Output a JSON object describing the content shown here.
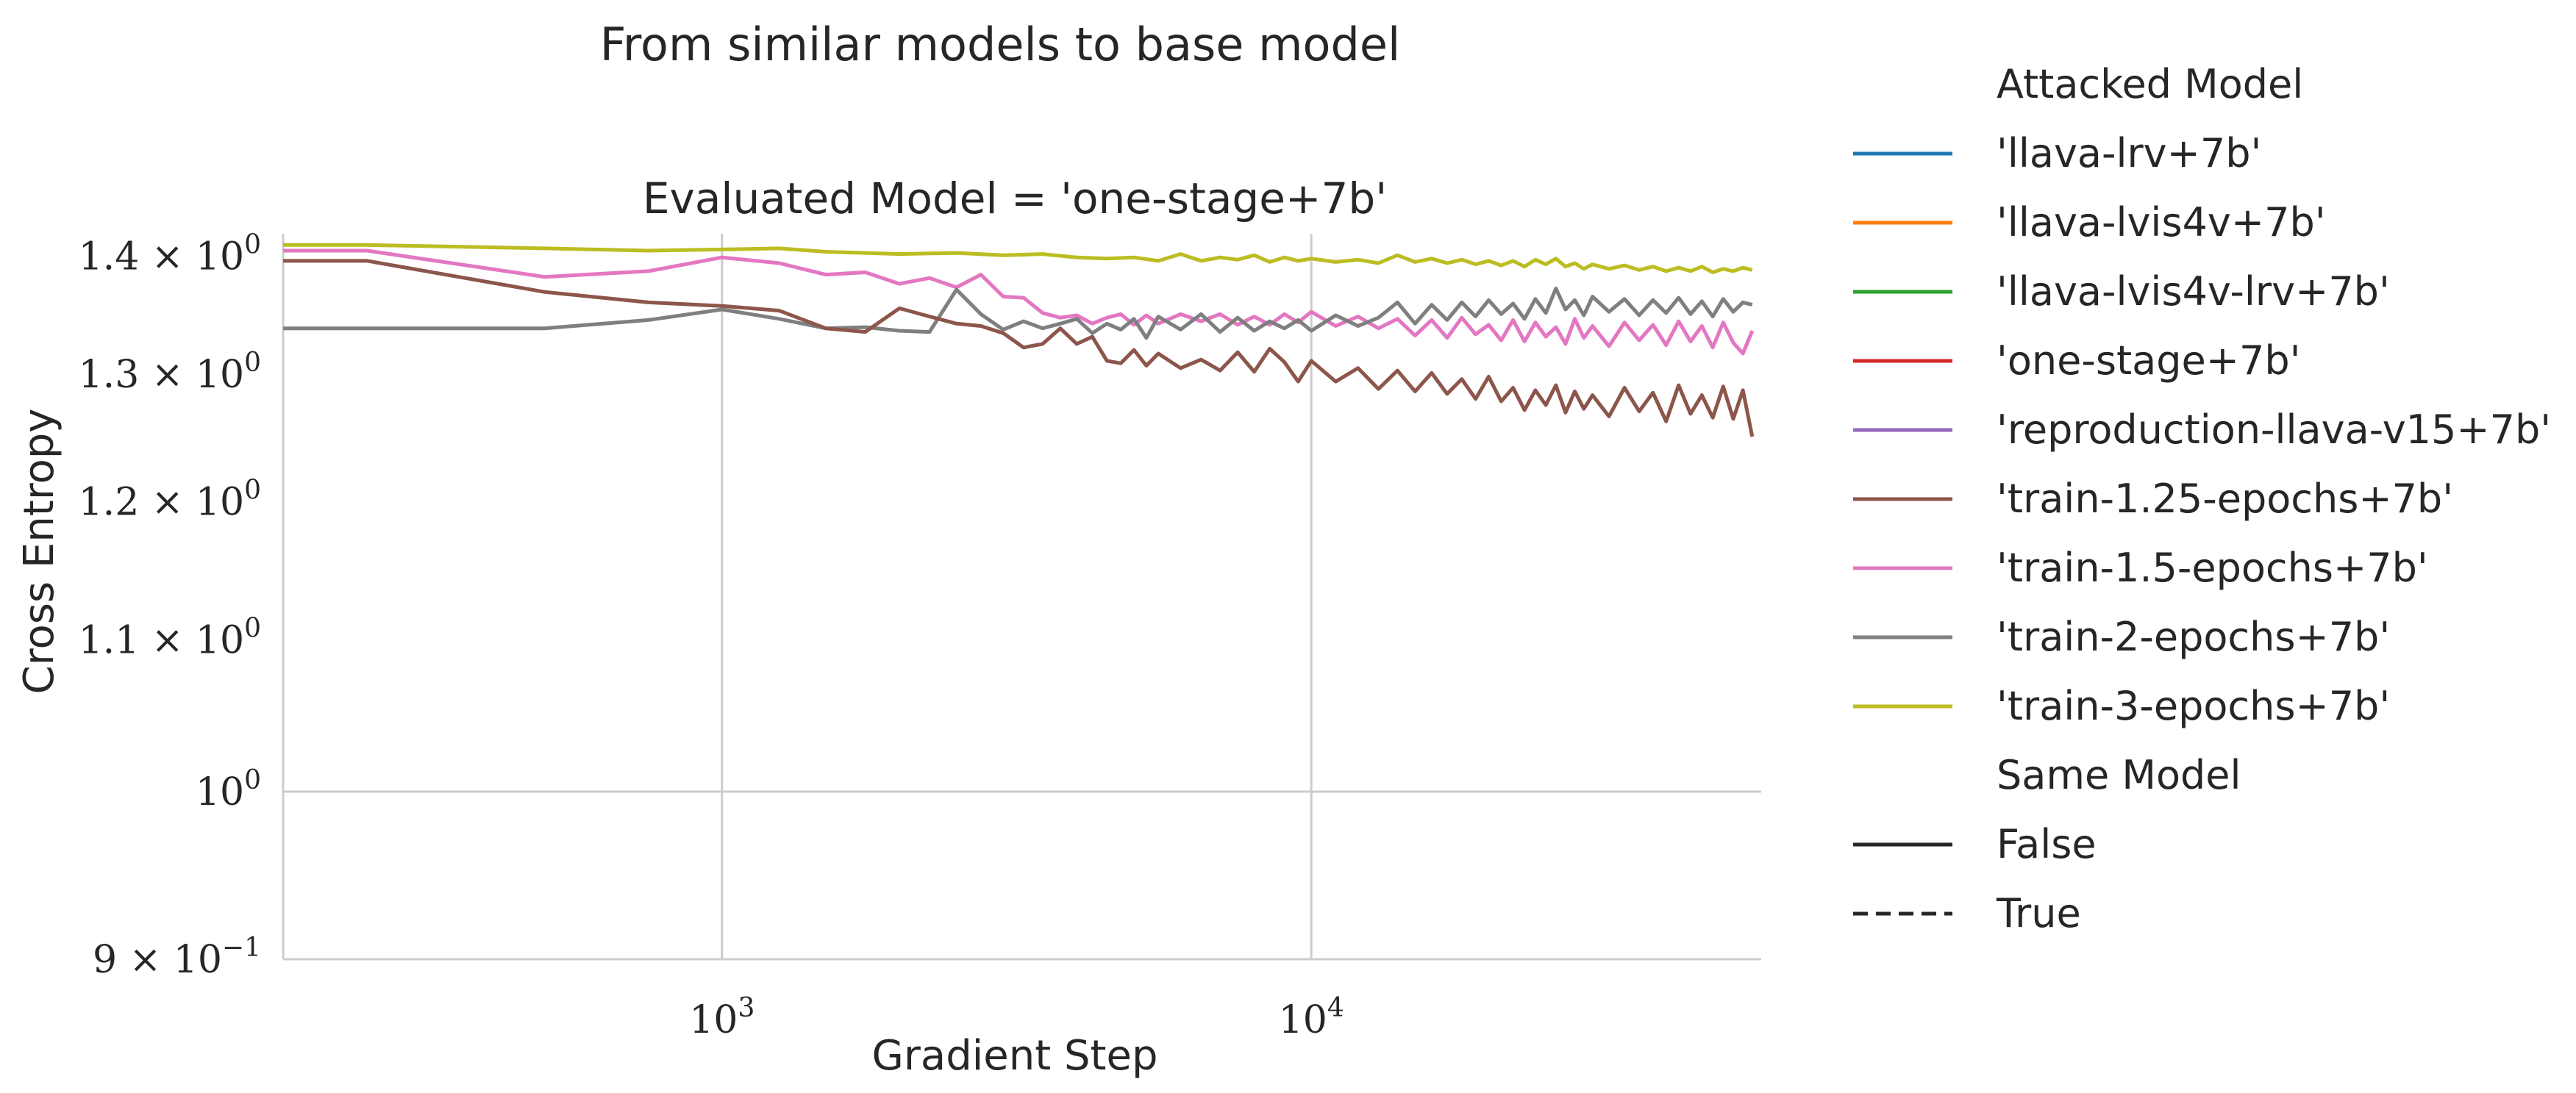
{
  "chart_data": {
    "type": "line",
    "title": "From similar models to base model",
    "subtitle": "Evaluated Model = 'one-stage+7b'",
    "xlabel": "Gradient Step",
    "ylabel": "Cross Entropy",
    "xscale": "log",
    "yscale": "log",
    "xlim": [
      180,
      58000
    ],
    "ylim": [
      0.9,
      1.42
    ],
    "grid": true,
    "legend_placement": "right, outside plot",
    "x_ticks": [
      {
        "value": 1000,
        "base": "10",
        "exp": "3"
      },
      {
        "value": 10000,
        "base": "10",
        "exp": "4"
      }
    ],
    "y_ticks": [
      {
        "value": 1.4,
        "mant": "1.4 × 10",
        "exp": "0"
      },
      {
        "value": 1.3,
        "mant": "1.3 × 10",
        "exp": "0"
      },
      {
        "value": 1.2,
        "mant": "1.2 × 10",
        "exp": "0"
      },
      {
        "value": 1.1,
        "mant": "1.1 × 10",
        "exp": "0"
      },
      {
        "value": 1.0,
        "mant": "10",
        "exp": "0"
      },
      {
        "value": 0.9,
        "mant": "9 × 10",
        "exp": "−1"
      }
    ],
    "legend": {
      "hue_title": "Attacked Model",
      "hue_entries": [
        {
          "label": "'llava-lrv+7b'",
          "color": "#1f77b4"
        },
        {
          "label": "'llava-lvis4v+7b'",
          "color": "#ff7f0e"
        },
        {
          "label": "'llava-lvis4v-lrv+7b'",
          "color": "#2ca02c"
        },
        {
          "label": "'one-stage+7b'",
          "color": "#d62728"
        },
        {
          "label": "'reproduction-llava-v15+7b'",
          "color": "#9467bd"
        },
        {
          "label": "'train-1.25-epochs+7b'",
          "color": "#8c564b"
        },
        {
          "label": "'train-1.5-epochs+7b'",
          "color": "#e377c2"
        },
        {
          "label": "'train-2-epochs+7b'",
          "color": "#7f7f7f"
        },
        {
          "label": "'train-3-epochs+7b'",
          "color": "#bcbd22"
        }
      ],
      "style_title": "Same Model",
      "style_entries": [
        {
          "label": "False",
          "dash": "solid"
        },
        {
          "label": "True",
          "dash": "dashed"
        }
      ]
    },
    "series": [
      {
        "name": "'train-3-epochs+7b'",
        "color": "#bcbd22",
        "points": [
          [
            180,
            1.41
          ],
          [
            250,
            1.41
          ],
          [
            500,
            1.407
          ],
          [
            750,
            1.405
          ],
          [
            1000,
            1.406
          ],
          [
            1250,
            1.407
          ],
          [
            1500,
            1.404
          ],
          [
            1750,
            1.403
          ],
          [
            2000,
            1.402
          ],
          [
            2500,
            1.403
          ],
          [
            3000,
            1.401
          ],
          [
            3500,
            1.402
          ],
          [
            4000,
            1.399
          ],
          [
            4500,
            1.398
          ],
          [
            5000,
            1.399
          ],
          [
            5500,
            1.396
          ],
          [
            6000,
            1.402
          ],
          [
            6500,
            1.396
          ],
          [
            7000,
            1.399
          ],
          [
            7500,
            1.397
          ],
          [
            8000,
            1.401
          ],
          [
            8500,
            1.395
          ],
          [
            9000,
            1.399
          ],
          [
            9500,
            1.396
          ],
          [
            10000,
            1.398
          ],
          [
            11000,
            1.395
          ],
          [
            12000,
            1.397
          ],
          [
            13000,
            1.394
          ],
          [
            14000,
            1.401
          ],
          [
            15000,
            1.395
          ],
          [
            16000,
            1.398
          ],
          [
            17000,
            1.394
          ],
          [
            18000,
            1.397
          ],
          [
            19000,
            1.393
          ],
          [
            20000,
            1.396
          ],
          [
            21000,
            1.392
          ],
          [
            22000,
            1.396
          ],
          [
            23000,
            1.391
          ],
          [
            24000,
            1.397
          ],
          [
            25000,
            1.393
          ],
          [
            26000,
            1.398
          ],
          [
            27000,
            1.391
          ],
          [
            28000,
            1.394
          ],
          [
            29000,
            1.389
          ],
          [
            30000,
            1.393
          ],
          [
            32000,
            1.389
          ],
          [
            34000,
            1.392
          ],
          [
            36000,
            1.388
          ],
          [
            38000,
            1.391
          ],
          [
            40000,
            1.387
          ],
          [
            42000,
            1.39
          ],
          [
            44000,
            1.387
          ],
          [
            46000,
            1.391
          ],
          [
            48000,
            1.386
          ],
          [
            50000,
            1.389
          ],
          [
            52000,
            1.387
          ],
          [
            54000,
            1.39
          ],
          [
            56000,
            1.388
          ]
        ]
      },
      {
        "name": "'train-1.5-epochs+7b'",
        "color": "#e377c2",
        "points": [
          [
            180,
            1.405
          ],
          [
            250,
            1.405
          ],
          [
            500,
            1.382
          ],
          [
            750,
            1.387
          ],
          [
            1000,
            1.399
          ],
          [
            1250,
            1.394
          ],
          [
            1500,
            1.384
          ],
          [
            1750,
            1.386
          ],
          [
            2000,
            1.376
          ],
          [
            2250,
            1.381
          ],
          [
            2500,
            1.373
          ],
          [
            2750,
            1.384
          ],
          [
            3000,
            1.365
          ],
          [
            3250,
            1.364
          ],
          [
            3500,
            1.351
          ],
          [
            3750,
            1.347
          ],
          [
            4000,
            1.349
          ],
          [
            4250,
            1.342
          ],
          [
            4500,
            1.347
          ],
          [
            4750,
            1.35
          ],
          [
            5000,
            1.341
          ],
          [
            5250,
            1.349
          ],
          [
            5500,
            1.342
          ],
          [
            6000,
            1.35
          ],
          [
            6500,
            1.344
          ],
          [
            7000,
            1.35
          ],
          [
            7500,
            1.341
          ],
          [
            8000,
            1.348
          ],
          [
            8500,
            1.341
          ],
          [
            9000,
            1.35
          ],
          [
            9500,
            1.343
          ],
          [
            10000,
            1.352
          ],
          [
            11000,
            1.34
          ],
          [
            12000,
            1.348
          ],
          [
            13000,
            1.338
          ],
          [
            14000,
            1.346
          ],
          [
            15000,
            1.332
          ],
          [
            16000,
            1.345
          ],
          [
            17000,
            1.33
          ],
          [
            18000,
            1.347
          ],
          [
            19000,
            1.333
          ],
          [
            20000,
            1.341
          ],
          [
            21000,
            1.328
          ],
          [
            22000,
            1.345
          ],
          [
            23000,
            1.327
          ],
          [
            24000,
            1.343
          ],
          [
            25000,
            1.331
          ],
          [
            26000,
            1.339
          ],
          [
            27000,
            1.325
          ],
          [
            28000,
            1.346
          ],
          [
            29000,
            1.33
          ],
          [
            30000,
            1.34
          ],
          [
            32000,
            1.323
          ],
          [
            34000,
            1.343
          ],
          [
            36000,
            1.328
          ],
          [
            38000,
            1.341
          ],
          [
            40000,
            1.324
          ],
          [
            42000,
            1.344
          ],
          [
            44000,
            1.327
          ],
          [
            46000,
            1.34
          ],
          [
            48000,
            1.322
          ],
          [
            50000,
            1.343
          ],
          [
            52000,
            1.326
          ],
          [
            54000,
            1.317
          ],
          [
            56000,
            1.336
          ]
        ]
      },
      {
        "name": "'train-2-epochs+7b'",
        "color": "#7f7f7f",
        "points": [
          [
            180,
            1.338
          ],
          [
            250,
            1.338
          ],
          [
            500,
            1.338
          ],
          [
            750,
            1.345
          ],
          [
            1000,
            1.354
          ],
          [
            1250,
            1.346
          ],
          [
            1500,
            1.338
          ],
          [
            1750,
            1.339
          ],
          [
            2000,
            1.336
          ],
          [
            2250,
            1.335
          ],
          [
            2500,
            1.371
          ],
          [
            2750,
            1.35
          ],
          [
            3000,
            1.337
          ],
          [
            3250,
            1.344
          ],
          [
            3500,
            1.338
          ],
          [
            3750,
            1.342
          ],
          [
            4000,
            1.346
          ],
          [
            4250,
            1.334
          ],
          [
            4500,
            1.342
          ],
          [
            4750,
            1.337
          ],
          [
            5000,
            1.346
          ],
          [
            5250,
            1.33
          ],
          [
            5500,
            1.348
          ],
          [
            6000,
            1.337
          ],
          [
            6500,
            1.35
          ],
          [
            7000,
            1.335
          ],
          [
            7500,
            1.347
          ],
          [
            8000,
            1.336
          ],
          [
            8500,
            1.344
          ],
          [
            9000,
            1.338
          ],
          [
            9500,
            1.345
          ],
          [
            10000,
            1.336
          ],
          [
            11000,
            1.349
          ],
          [
            12000,
            1.34
          ],
          [
            13000,
            1.347
          ],
          [
            14000,
            1.36
          ],
          [
            15000,
            1.342
          ],
          [
            16000,
            1.358
          ],
          [
            17000,
            1.345
          ],
          [
            18000,
            1.36
          ],
          [
            19000,
            1.348
          ],
          [
            20000,
            1.362
          ],
          [
            21000,
            1.35
          ],
          [
            22000,
            1.359
          ],
          [
            23000,
            1.346
          ],
          [
            24000,
            1.363
          ],
          [
            25000,
            1.351
          ],
          [
            26000,
            1.372
          ],
          [
            27000,
            1.354
          ],
          [
            28000,
            1.362
          ],
          [
            29000,
            1.349
          ],
          [
            30000,
            1.365
          ],
          [
            32000,
            1.352
          ],
          [
            34000,
            1.363
          ],
          [
            36000,
            1.349
          ],
          [
            38000,
            1.362
          ],
          [
            40000,
            1.351
          ],
          [
            42000,
            1.364
          ],
          [
            44000,
            1.35
          ],
          [
            46000,
            1.361
          ],
          [
            48000,
            1.348
          ],
          [
            50000,
            1.363
          ],
          [
            52000,
            1.352
          ],
          [
            54000,
            1.36
          ],
          [
            56000,
            1.358
          ]
        ]
      },
      {
        "name": "'train-1.25-epochs+7b'",
        "color": "#8c564b",
        "points": [
          [
            180,
            1.396
          ],
          [
            250,
            1.396
          ],
          [
            500,
            1.369
          ],
          [
            750,
            1.36
          ],
          [
            1000,
            1.357
          ],
          [
            1250,
            1.353
          ],
          [
            1500,
            1.338
          ],
          [
            1750,
            1.335
          ],
          [
            2000,
            1.355
          ],
          [
            2250,
            1.348
          ],
          [
            2500,
            1.342
          ],
          [
            2750,
            1.34
          ],
          [
            3000,
            1.334
          ],
          [
            3250,
            1.322
          ],
          [
            3500,
            1.325
          ],
          [
            3750,
            1.338
          ],
          [
            4000,
            1.325
          ],
          [
            4250,
            1.331
          ],
          [
            4500,
            1.311
          ],
          [
            4750,
            1.309
          ],
          [
            5000,
            1.32
          ],
          [
            5250,
            1.307
          ],
          [
            5500,
            1.317
          ],
          [
            6000,
            1.305
          ],
          [
            6500,
            1.312
          ],
          [
            7000,
            1.303
          ],
          [
            7500,
            1.318
          ],
          [
            8000,
            1.302
          ],
          [
            8500,
            1.321
          ],
          [
            9000,
            1.31
          ],
          [
            9500,
            1.294
          ],
          [
            10000,
            1.311
          ],
          [
            11000,
            1.294
          ],
          [
            12000,
            1.305
          ],
          [
            13000,
            1.288
          ],
          [
            14000,
            1.303
          ],
          [
            15000,
            1.286
          ],
          [
            16000,
            1.301
          ],
          [
            17000,
            1.284
          ],
          [
            18000,
            1.296
          ],
          [
            19000,
            1.28
          ],
          [
            20000,
            1.298
          ],
          [
            21000,
            1.278
          ],
          [
            22000,
            1.289
          ],
          [
            23000,
            1.271
          ],
          [
            24000,
            1.287
          ],
          [
            25000,
            1.275
          ],
          [
            26000,
            1.291
          ],
          [
            27000,
            1.269
          ],
          [
            28000,
            1.286
          ],
          [
            29000,
            1.272
          ],
          [
            30000,
            1.283
          ],
          [
            32000,
            1.266
          ],
          [
            34000,
            1.289
          ],
          [
            36000,
            1.27
          ],
          [
            38000,
            1.285
          ],
          [
            40000,
            1.262
          ],
          [
            42000,
            1.291
          ],
          [
            44000,
            1.268
          ],
          [
            46000,
            1.283
          ],
          [
            48000,
            1.265
          ],
          [
            50000,
            1.29
          ],
          [
            52000,
            1.264
          ],
          [
            54000,
            1.287
          ],
          [
            56000,
            1.25
          ]
        ]
      }
    ]
  }
}
